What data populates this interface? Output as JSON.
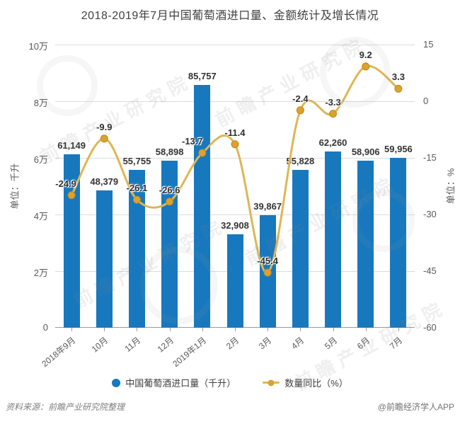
{
  "title": "2018-2019年7月中国葡萄酒进口量、金额统计及增长情况",
  "chart_data": {
    "type": "bar",
    "subtype": "bar+line combo, dual y-axis",
    "categories": [
      "2018年9月",
      "10月",
      "11月",
      "12月",
      "2019年1月",
      "2月",
      "3月",
      "4月",
      "5月",
      "6月",
      "7月"
    ],
    "series": [
      {
        "name": "中国葡萄酒进口量（千升）",
        "type": "bar",
        "axis": "left",
        "values": [
          61149,
          48379,
          55755,
          58898,
          85757,
          32908,
          39867,
          55828,
          62260,
          58906,
          59956
        ]
      },
      {
        "name": "数量同比（%）",
        "type": "line",
        "axis": "right",
        "values": [
          -24.9,
          -9.9,
          -26.1,
          -26.6,
          -13.7,
          -11.4,
          -45.4,
          -2.4,
          -3.3,
          9.2,
          3.3
        ]
      }
    ],
    "left_axis": {
      "title": "单位：千升",
      "tick_labels": [
        "10万",
        "8万",
        "6万",
        "4万",
        "2万",
        "0"
      ],
      "min": 0,
      "max": 100000
    },
    "right_axis": {
      "title": "单位：%",
      "tick_labels": [
        "15",
        "0",
        "-15",
        "-30",
        "-45",
        "-60"
      ],
      "min": -60,
      "max": 15
    },
    "grid": true,
    "legend_position": "bottom"
  },
  "legend": {
    "bar_label": "中国葡萄酒进口量（千升）",
    "line_label": "数量同比（%）"
  },
  "footer": {
    "source": "资料来源：前瞻产业研究院整理",
    "credit": "@前瞻经济学人APP"
  },
  "watermark": {
    "text": "前瞻产业研究院"
  },
  "colors": {
    "bar": "#1878be",
    "line": "#dfb654",
    "marker": "#d9a32e",
    "marker_edge": "#c08a1e",
    "grid": "#dcdcdc",
    "axis_line": "#9a9a9a",
    "tick_text": "#595959",
    "title_text": "#404040"
  }
}
